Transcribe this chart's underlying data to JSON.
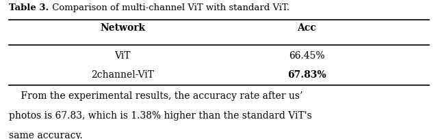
{
  "title_bold": "Table 3.",
  "title_rest": " Comparison of multi-channel ViT with standard ViT.",
  "col_headers": [
    "Network",
    "Acc"
  ],
  "rows": [
    [
      "ViT",
      "66.45%"
    ],
    [
      "2channel-ViT",
      "67.83%"
    ]
  ],
  "bold_rows": [
    1
  ],
  "caption_lines": [
    "    From the experimental results, the accuracy rate after us’",
    "photos is 67.83, which is 1.38% higher than the standard ViT's",
    "same accuracy."
  ],
  "bg_color": "#ffffff",
  "text_color": "#000000",
  "title_fontsize": 9.5,
  "header_fontsize": 10,
  "cell_fontsize": 10,
  "caption_fontsize": 10
}
